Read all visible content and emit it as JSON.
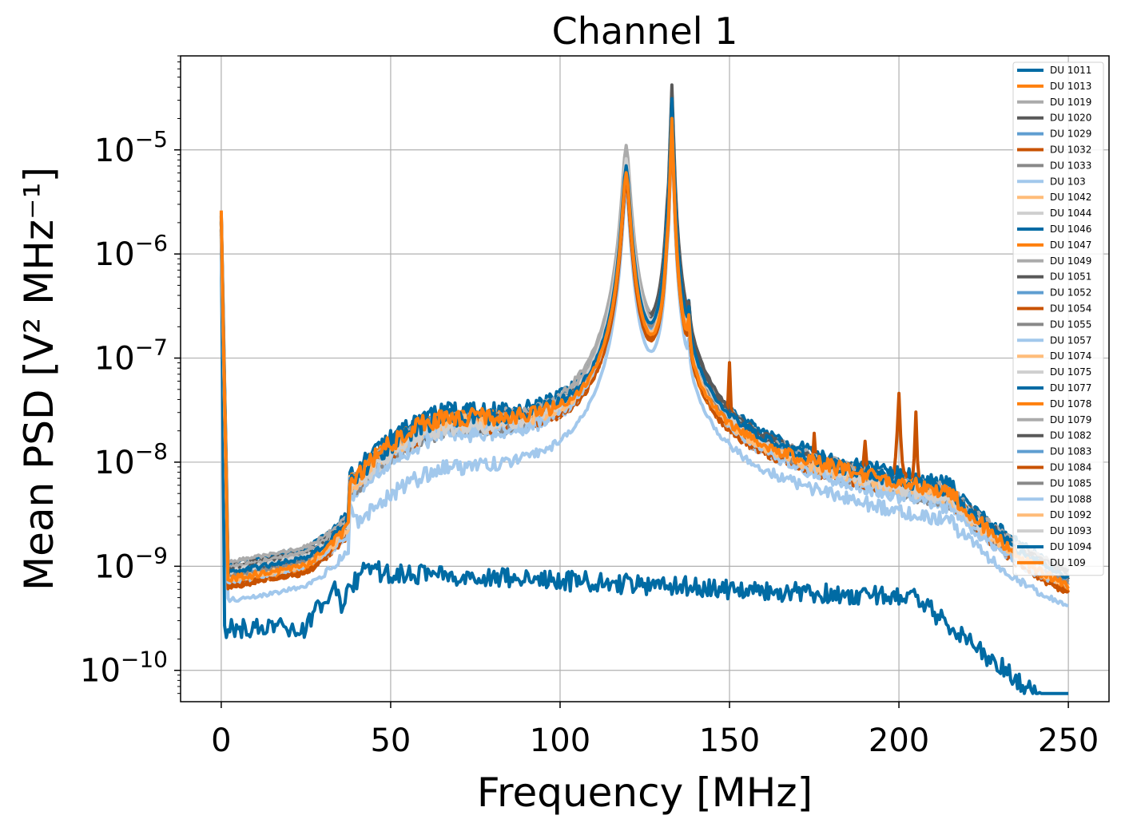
{
  "chart_data": {
    "type": "line",
    "title": "Channel 1",
    "xlabel": "Frequency [MHz]",
    "ylabel": "Mean PSD [V² MHz⁻¹]",
    "y_scale": "log",
    "xlim": [
      -12,
      262
    ],
    "ylim": [
      5e-11,
      8e-05
    ],
    "x_ticks": [
      0,
      50,
      100,
      150,
      200,
      250
    ],
    "y_ticks": [
      {
        "value": 1e-10,
        "base": "10",
        "exp": "−10"
      },
      {
        "value": 1e-09,
        "base": "10",
        "exp": "−9"
      },
      {
        "value": 1e-08,
        "base": "10",
        "exp": "−8"
      },
      {
        "value": 1e-07,
        "base": "10",
        "exp": "−7"
      },
      {
        "value": 1e-06,
        "base": "10",
        "exp": "−6"
      },
      {
        "value": 1e-05,
        "base": "10",
        "exp": "−5"
      }
    ],
    "grid": true,
    "legend_position": "top-right",
    "series": [
      {
        "name": "DU 1011",
        "color": "#006ba4",
        "profile": "standard",
        "scale": 1.25,
        "peak120": 9e-06,
        "peak133": 3.5e-05,
        "seed": 1
      },
      {
        "name": "DU 1013",
        "color": "#ff800e",
        "profile": "standard",
        "scale": 1.05,
        "peak120": 6e-06,
        "peak133": 2e-05,
        "seed": 2
      },
      {
        "name": "DU 1019",
        "color": "#ababab",
        "profile": "standard",
        "scale": 1.0,
        "peak120": 1.1e-05,
        "peak133": 3e-05,
        "seed": 3
      },
      {
        "name": "DU 1020",
        "color": "#595959",
        "profile": "standard",
        "scale": 0.95,
        "peak120": 8e-06,
        "peak133": 4.2e-05,
        "seed": 4
      },
      {
        "name": "DU 1029",
        "color": "#5f9ed1",
        "profile": "standard",
        "scale": 1.0,
        "peak120": 7e-06,
        "peak133": 2.8e-05,
        "seed": 5
      },
      {
        "name": "DU 1032",
        "color": "#c85200",
        "profile": "spiky",
        "scale": 1.0,
        "peak120": 5e-06,
        "peak133": 2e-05,
        "seed": 6
      },
      {
        "name": "DU 1033",
        "color": "#898989",
        "profile": "standard",
        "scale": 0.85,
        "peak120": 7.5e-06,
        "peak133": 2.5e-05,
        "seed": 7
      },
      {
        "name": "DU 103",
        "color": "#a2c8ec",
        "profile": "low",
        "scale": 0.55,
        "peak120": 4e-06,
        "peak133": 1.5e-05,
        "seed": 8
      },
      {
        "name": "DU 1042",
        "color": "#ffbc79",
        "profile": "standard",
        "scale": 1.0,
        "peak120": 6.5e-06,
        "peak133": 2.2e-05,
        "seed": 9
      },
      {
        "name": "DU 1044",
        "color": "#cfcfcf",
        "profile": "standard",
        "scale": 0.9,
        "peak120": 8e-06,
        "peak133": 3e-05,
        "seed": 10
      },
      {
        "name": "DU 1046",
        "color": "#006ba4",
        "profile": "standard",
        "scale": 1.15,
        "peak120": 7e-06,
        "peak133": 3e-05,
        "seed": 11
      },
      {
        "name": "DU 1047",
        "color": "#ff800e",
        "profile": "standard",
        "scale": 1.1,
        "peak120": 5.5e-06,
        "peak133": 1.8e-05,
        "seed": 12
      },
      {
        "name": "DU 1049",
        "color": "#ababab",
        "profile": "standard",
        "scale": 0.9,
        "peak120": 9e-06,
        "peak133": 2.6e-05,
        "seed": 13
      },
      {
        "name": "DU 1051",
        "color": "#595959",
        "profile": "standard",
        "scale": 0.9,
        "peak120": 7e-06,
        "peak133": 3.2e-05,
        "seed": 14
      },
      {
        "name": "DU 1052",
        "color": "#5f9ed1",
        "profile": "standard",
        "scale": 1.05,
        "peak120": 6e-06,
        "peak133": 2.4e-05,
        "seed": 15
      },
      {
        "name": "DU 1054",
        "color": "#c85200",
        "profile": "standard",
        "scale": 0.95,
        "peak120": 5e-06,
        "peak133": 1.9e-05,
        "seed": 16
      },
      {
        "name": "DU 1055",
        "color": "#898989",
        "profile": "standard",
        "scale": 0.8,
        "peak120": 7e-06,
        "peak133": 2.7e-05,
        "seed": 17
      },
      {
        "name": "DU 1057",
        "color": "#a2c8ec",
        "profile": "standard",
        "scale": 0.75,
        "peak120": 6e-06,
        "peak133": 2.3e-05,
        "seed": 18
      },
      {
        "name": "DU 1074",
        "color": "#ffbc79",
        "profile": "standard",
        "scale": 1.0,
        "peak120": 6e-06,
        "peak133": 2.1e-05,
        "seed": 19
      },
      {
        "name": "DU 1075",
        "color": "#cfcfcf",
        "profile": "standard",
        "scale": 0.85,
        "peak120": 8.5e-06,
        "peak133": 2.9e-05,
        "seed": 20
      },
      {
        "name": "DU 1077",
        "color": "#006ba4",
        "profile": "flat",
        "scale": 1.0,
        "peak120": 0,
        "peak133": 0,
        "seed": 21
      },
      {
        "name": "DU 1078",
        "color": "#ff800e",
        "profile": "standard",
        "scale": 1.05,
        "peak120": 5.8e-06,
        "peak133": 1.9e-05,
        "seed": 22
      },
      {
        "name": "DU 1079",
        "color": "#ababab",
        "profile": "standard",
        "scale": 0.95,
        "peak120": 9.5e-06,
        "peak133": 2.8e-05,
        "seed": 23
      },
      {
        "name": "DU 1082",
        "color": "#595959",
        "profile": "standard",
        "scale": 0.9,
        "peak120": 7.5e-06,
        "peak133": 3.6e-05,
        "seed": 24
      },
      {
        "name": "DU 1083",
        "color": "#5f9ed1",
        "profile": "standard",
        "scale": 1.0,
        "peak120": 6.5e-06,
        "peak133": 2.5e-05,
        "seed": 25
      },
      {
        "name": "DU 1084",
        "color": "#c85200",
        "profile": "standard",
        "scale": 0.95,
        "peak120": 5.2e-06,
        "peak133": 2e-05,
        "seed": 26
      },
      {
        "name": "DU 1085",
        "color": "#898989",
        "profile": "standard",
        "scale": 0.85,
        "peak120": 7.2e-06,
        "peak133": 2.6e-05,
        "seed": 27
      },
      {
        "name": "DU 1088",
        "color": "#a2c8ec",
        "profile": "standard",
        "scale": 0.8,
        "peak120": 6.2e-06,
        "peak133": 2.4e-05,
        "seed": 28
      },
      {
        "name": "DU 1092",
        "color": "#ffbc79",
        "profile": "standard",
        "scale": 1.0,
        "peak120": 6.2e-06,
        "peak133": 2.2e-05,
        "seed": 29
      },
      {
        "name": "DU 1093",
        "color": "#cfcfcf",
        "profile": "standard",
        "scale": 0.85,
        "peak120": 8.2e-06,
        "peak133": 3e-05,
        "seed": 30
      },
      {
        "name": "DU 1094",
        "color": "#006ba4",
        "profile": "standard",
        "scale": 1.1,
        "peak120": 7e-06,
        "peak133": 3.1e-05,
        "seed": 31
      },
      {
        "name": "DU 109",
        "color": "#ff800e",
        "profile": "standard",
        "scale": 1.15,
        "peak120": 6e-06,
        "peak133": 2e-05,
        "seed": 32
      }
    ]
  }
}
